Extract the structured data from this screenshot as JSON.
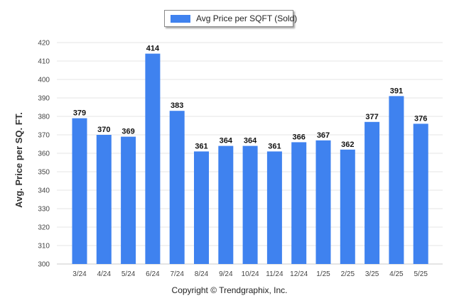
{
  "chart_data": {
    "type": "bar",
    "legend": {
      "label": "Avg Price per SQFT (Sold)",
      "color": "#3f82ef",
      "placement": "top-center"
    },
    "ylabel": "Avg. Price per SQ. FT.",
    "xlabel": "",
    "ylim": [
      300,
      420
    ],
    "yticks": [
      300,
      310,
      320,
      330,
      340,
      350,
      360,
      370,
      380,
      390,
      400,
      410,
      420
    ],
    "grid": true,
    "categories": [
      "3/24",
      "4/24",
      "5/24",
      "6/24",
      "7/24",
      "8/24",
      "9/24",
      "10/24",
      "11/24",
      "12/24",
      "1/25",
      "2/25",
      "3/25",
      "4/25",
      "5/25"
    ],
    "series": [
      {
        "name": "Avg Price per SQFT (Sold)",
        "color": "#3f82ef",
        "values": [
          379,
          370,
          369,
          414,
          383,
          361,
          364,
          364,
          361,
          366,
          367,
          362,
          377,
          391,
          376
        ]
      }
    ]
  },
  "footer": {
    "copyright": "Copyright © Trendgraphix, Inc."
  }
}
